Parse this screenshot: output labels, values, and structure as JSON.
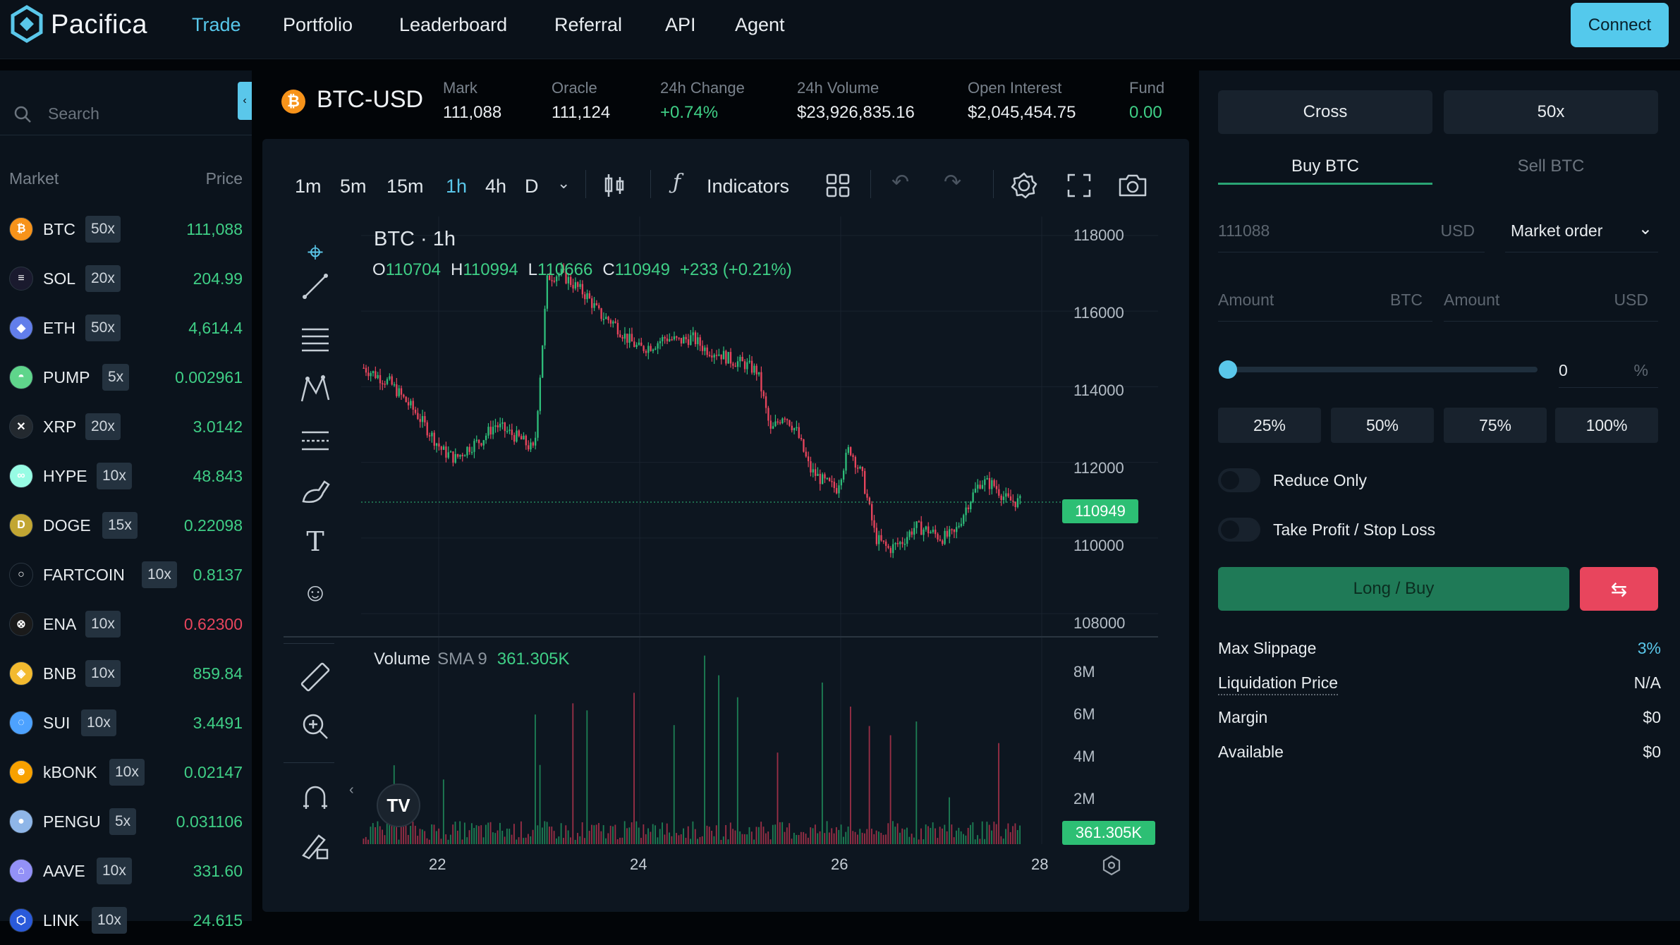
{
  "nav": {
    "brand": "Pacifica",
    "links": [
      "Trade",
      "Portfolio",
      "Leaderboard",
      "Referral",
      "API",
      "Agent"
    ],
    "connect": "Connect"
  },
  "sidebar": {
    "search_placeholder": "Search",
    "col_market": "Market",
    "col_price": "Price",
    "markets": [
      {
        "sym": "BTC",
        "lev": "50x",
        "price": "111,088",
        "color": "#f7931a",
        "dir": "up"
      },
      {
        "sym": "SOL",
        "lev": "20x",
        "price": "204.99",
        "color": "#1a1a2e",
        "dir": "up"
      },
      {
        "sym": "ETH",
        "lev": "50x",
        "price": "4,614.4",
        "color": "#627eea",
        "dir": "up"
      },
      {
        "sym": "PUMP",
        "lev": "5x",
        "price": "0.002961",
        "color": "#5fd58b",
        "dir": "up"
      },
      {
        "sym": "XRP",
        "lev": "20x",
        "price": "3.0142",
        "color": "#23292f",
        "dir": "up"
      },
      {
        "sym": "HYPE",
        "lev": "10x",
        "price": "48.843",
        "color": "#97fce4",
        "dir": "up"
      },
      {
        "sym": "DOGE",
        "lev": "15x",
        "price": "0.22098",
        "color": "#c2a633",
        "dir": "up"
      },
      {
        "sym": "FARTCOIN",
        "lev": "10x",
        "price": "0.8137",
        "color": "#0b131c",
        "dir": "up"
      },
      {
        "sym": "ENA",
        "lev": "10x",
        "price": "0.62300",
        "color": "#1a1a1a",
        "dir": "down"
      },
      {
        "sym": "BNB",
        "lev": "10x",
        "price": "859.84",
        "color": "#f3ba2f",
        "dir": "up"
      },
      {
        "sym": "SUI",
        "lev": "10x",
        "price": "3.4491",
        "color": "#4da2ff",
        "dir": "up"
      },
      {
        "sym": "kBONK",
        "lev": "10x",
        "price": "0.02147",
        "color": "#f8a100",
        "dir": "up"
      },
      {
        "sym": "PENGU",
        "lev": "5x",
        "price": "0.031106",
        "color": "#8fb6e8",
        "dir": "up"
      },
      {
        "sym": "AAVE",
        "lev": "10x",
        "price": "331.60",
        "color": "#9391f7",
        "dir": "up"
      },
      {
        "sym": "LINK",
        "lev": "10x",
        "price": "24.615",
        "color": "#2a5ada",
        "dir": "up"
      }
    ]
  },
  "ticker": {
    "symbol": "BTC-USD",
    "stats": [
      {
        "label": "Mark",
        "value": "111,088"
      },
      {
        "label": "Oracle",
        "value": "111,124"
      },
      {
        "label": "24h Change",
        "value": "+0.74%"
      },
      {
        "label": "24h Volume",
        "value": "$23,926,835.16"
      },
      {
        "label": "Open Interest",
        "value": "$2,045,454.75"
      },
      {
        "label": "Fund",
        "value": "0.00"
      }
    ]
  },
  "toolbar": {
    "timeframes": [
      "1m",
      "5m",
      "15m",
      "1h",
      "4h",
      "D"
    ],
    "active_timeframe": "1h",
    "indicators": "Indicators"
  },
  "chart": {
    "legend_title": "BTC · 1h",
    "ohlc": {
      "o_label": "O",
      "o": "110704",
      "h_label": "H",
      "h": "110994",
      "l_label": "L",
      "l": "110666",
      "c_label": "C",
      "c": "110949",
      "change": "+233 (+0.21%)"
    },
    "volume_title": "Volume",
    "volume_sma": "SMA 9",
    "volume_value": "361.305K",
    "price_tag": "110949",
    "volume_tag": "361.305K",
    "price_ticks": [
      "118000",
      "116000",
      "114000",
      "112000",
      "110000",
      "108000"
    ],
    "volume_ticks": [
      "8M",
      "6M",
      "4M",
      "2M"
    ],
    "x_ticks": [
      "22",
      "24",
      "26",
      "28"
    ]
  },
  "chart_data": {
    "type": "candlestick",
    "title": "BTC · 1h",
    "ylim": [
      107500,
      118500
    ],
    "x_ticks": [
      "22",
      "24",
      "26",
      "28"
    ],
    "close_path": [
      114500,
      114300,
      114100,
      113700,
      113300,
      112800,
      112300,
      112100,
      112400,
      112600,
      113000,
      112800,
      112600,
      112300,
      116900,
      117000,
      116700,
      116400,
      115900,
      115700,
      115300,
      115000,
      115100,
      115300,
      115200,
      115300,
      115000,
      114900,
      114700,
      114600,
      114400,
      112800,
      113300,
      112800,
      111800,
      111500,
      111300,
      112400,
      111600,
      110000,
      109700,
      109900,
      110300,
      110200,
      110000,
      110100,
      110900,
      111500,
      111400,
      111000,
      110949
    ],
    "volume_max": 9000000
  },
  "order": {
    "margin_mode": "Cross",
    "leverage": "50x",
    "buy_tab": "Buy BTC",
    "sell_tab": "Sell BTC",
    "price_value": "111088",
    "price_unit": "USD",
    "order_type": "Market order",
    "amount_placeholder": "Amount",
    "amount_unit_base": "BTC",
    "amount_unit_quote": "USD",
    "slider_value": "0",
    "slider_unit": "%",
    "pct_buttons": [
      "25%",
      "50%",
      "75%",
      "100%"
    ],
    "reduce_only": "Reduce Only",
    "tp_sl": "Take Profit / Stop Loss",
    "submit": "Long / Buy",
    "swap_icon": "⇆",
    "info": [
      {
        "label": "Max Slippage",
        "value": "3%"
      },
      {
        "label": "Liquidation Price",
        "value": "N/A"
      },
      {
        "label": "Margin",
        "value": "$0"
      },
      {
        "label": "Available",
        "value": "$0"
      }
    ]
  },
  "colors": {
    "accent": "#5ac7ea",
    "up": "#3fcf86",
    "down": "#e8455d",
    "buy": "#1f7a57",
    "sell": "#e8455d"
  }
}
